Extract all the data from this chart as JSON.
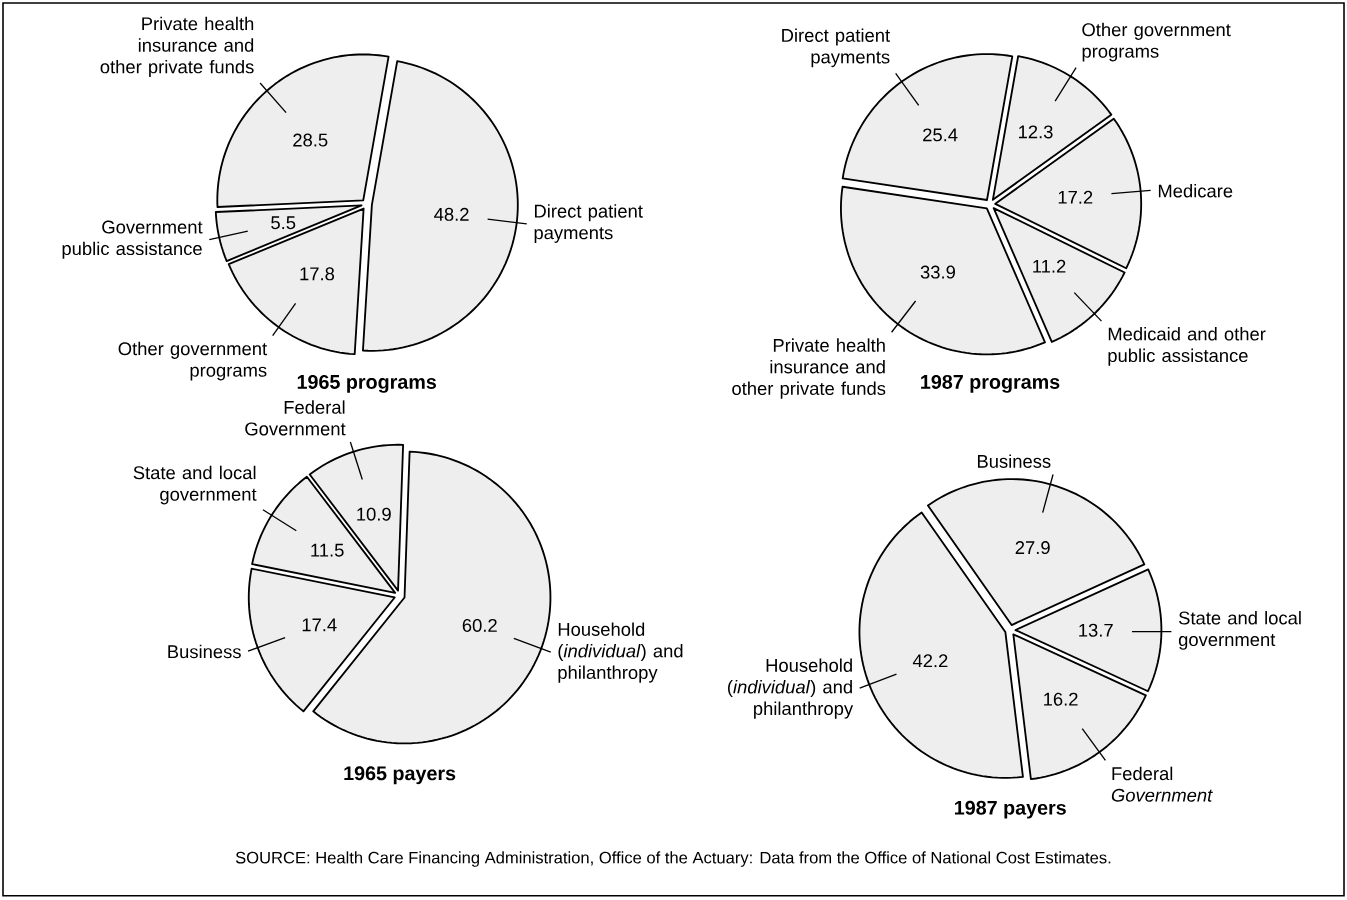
{
  "chart_data": [
    {
      "type": "pie",
      "title": "1965 programs",
      "categories": [
        "Direct patient payments",
        "Other government programs",
        "Government public assistance",
        "Private health insurance and other private funds"
      ],
      "values": [
        48.2,
        17.8,
        5.5,
        28.5
      ],
      "colors": [
        "#eeeeee",
        "#eeeeee",
        "#eeeeee",
        "#eeeeee"
      ],
      "data_labels": true
    },
    {
      "type": "pie",
      "title": "1987 programs",
      "categories": [
        "Other government programs",
        "Medicare",
        "Medicaid and other public assistance",
        "Private health insurance and other private funds",
        "Direct patient payments"
      ],
      "values": [
        12.3,
        17.2,
        11.2,
        33.9,
        25.4
      ],
      "colors": [
        "#eeeeee",
        "#eeeeee",
        "#eeeeee",
        "#eeeeee",
        "#eeeeee"
      ],
      "data_labels": true
    },
    {
      "type": "pie",
      "title": "1965 payers",
      "categories": [
        "Household (*individual*) and philanthropy",
        "Business",
        "State and local government",
        "Federal Government"
      ],
      "values": [
        60.2,
        17.4,
        11.5,
        10.9
      ],
      "colors": [
        "#eeeeee",
        "#eeeeee",
        "#eeeeee",
        "#eeeeee"
      ],
      "data_labels": true
    },
    {
      "type": "pie",
      "title": "1987 payers",
      "categories": [
        "Business",
        "State and local government",
        "Federal *Government*",
        "Household (*individual*) and philanthropy"
      ],
      "values": [
        27.9,
        13.7,
        16.2,
        42.2
      ],
      "colors": [
        "#eeeeee",
        "#eeeeee",
        "#eeeeee",
        "#eeeeee"
      ],
      "data_labels": true,
      "annotations": [
        "SOURCE:  Health Care Financing Administration, Office of the Actuary:  Data from the Office of National Cost Estimates."
      ]
    }
  ]
}
